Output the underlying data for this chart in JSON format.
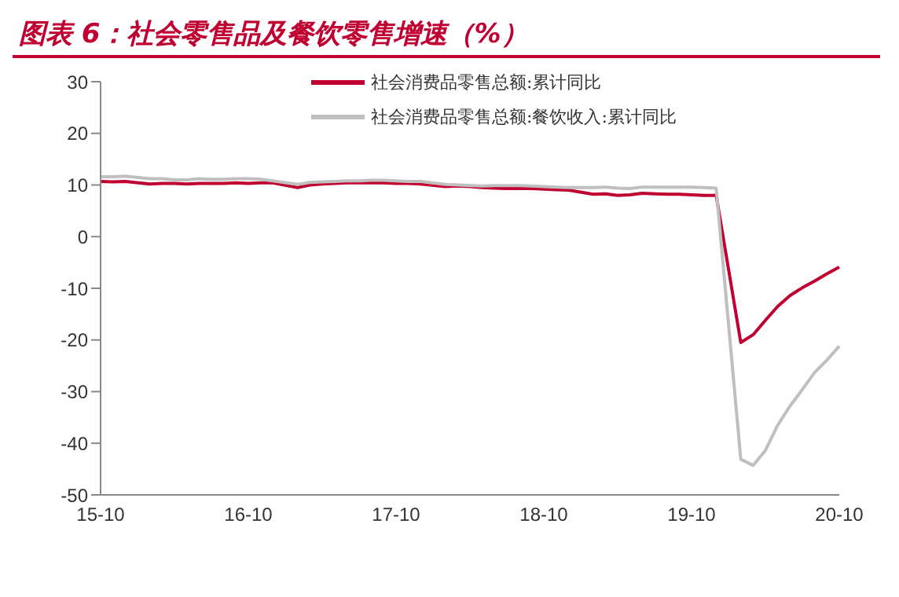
{
  "chart_data": {
    "type": "line",
    "title": "图表 6：社会零售品及餐饮零售增速（%）",
    "categories": [
      "15-10",
      null,
      null,
      null,
      null,
      null,
      null,
      null,
      null,
      null,
      null,
      null,
      "16-10",
      null,
      null,
      null,
      null,
      null,
      null,
      null,
      null,
      null,
      null,
      null,
      "17-10",
      null,
      null,
      null,
      null,
      null,
      null,
      null,
      null,
      null,
      null,
      null,
      "18-10",
      null,
      null,
      null,
      null,
      null,
      null,
      null,
      null,
      null,
      null,
      null,
      "19-10",
      null,
      null,
      null,
      null,
      null,
      null,
      null,
      null,
      null,
      null,
      null,
      "20-10"
    ],
    "series": [
      {
        "name": "社会消费品零售总额:累计同比",
        "color": "#c00030",
        "values": [
          10.7,
          10.6,
          10.7,
          null,
          10.2,
          10.3,
          10.3,
          10.2,
          10.3,
          10.3,
          10.3,
          10.4,
          10.3,
          10.4,
          10.4,
          null,
          9.5,
          10.0,
          10.2,
          10.3,
          10.4,
          10.4,
          10.4,
          10.4,
          10.3,
          10.3,
          10.2,
          null,
          9.7,
          9.8,
          9.7,
          9.5,
          9.4,
          9.3,
          9.3,
          9.3,
          9.2,
          9.1,
          9.0,
          null,
          8.2,
          8.3,
          8.0,
          8.1,
          8.4,
          8.3,
          8.2,
          8.2,
          8.1,
          8.0,
          8.0,
          null,
          -20.5,
          -19.0,
          -16.2,
          -13.5,
          -11.4,
          -9.9,
          -8.6,
          -7.2,
          -5.9
        ]
      },
      {
        "name": "社会消费品零售总额:餐饮收入:累计同比",
        "color": "#bfbfbf",
        "values": [
          11.6,
          11.6,
          11.7,
          null,
          11.2,
          11.2,
          11.0,
          11.0,
          11.2,
          11.1,
          11.1,
          11.2,
          11.2,
          11.1,
          10.8,
          null,
          10.1,
          10.5,
          10.6,
          10.7,
          10.8,
          10.8,
          10.9,
          10.9,
          10.8,
          10.7,
          10.7,
          null,
          10.1,
          10.0,
          9.9,
          9.8,
          9.9,
          9.9,
          9.9,
          9.8,
          9.7,
          9.6,
          9.5,
          null,
          9.5,
          9.6,
          9.4,
          9.3,
          9.6,
          9.6,
          9.6,
          9.6,
          9.6,
          9.5,
          9.4,
          null,
          -43.1,
          -44.3,
          -41.4,
          -36.5,
          -32.8,
          -29.6,
          -26.3,
          -23.9,
          -21.2
        ]
      }
    ],
    "ylim": [
      -50,
      30
    ],
    "yticks": [
      -50,
      -40,
      -30,
      -20,
      -10,
      0,
      10,
      20,
      30
    ],
    "grid": false,
    "legend": "top",
    "marker": "none",
    "line_style": "solid"
  }
}
